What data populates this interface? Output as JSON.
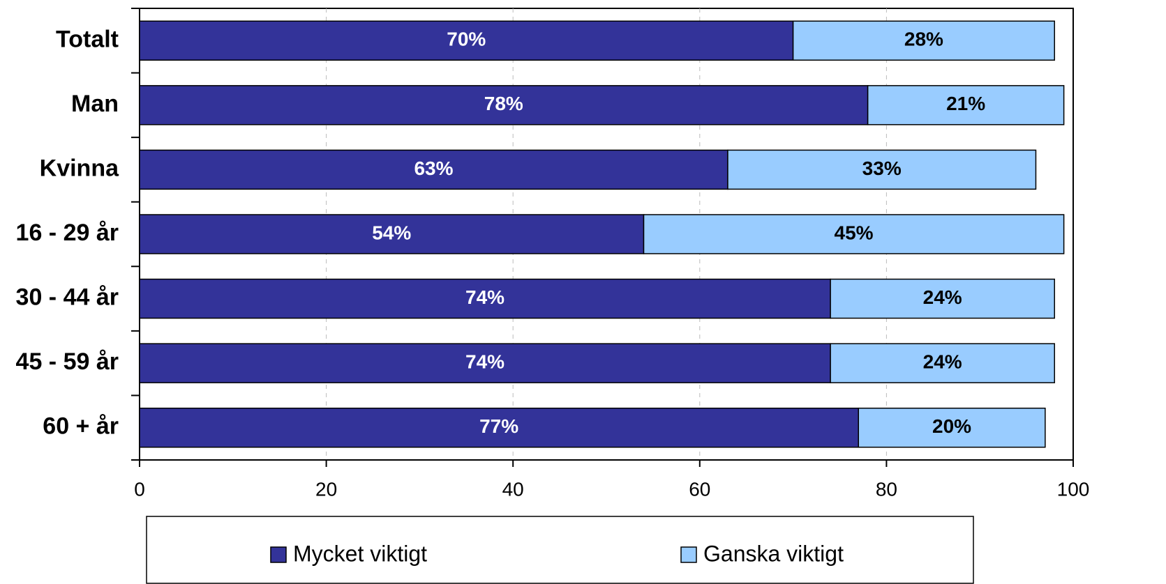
{
  "chart_data": {
    "type": "stacked_bar_horizontal",
    "categories": [
      "Totalt",
      "Man",
      "Kvinna",
      "16 - 29 år",
      "30 - 44 år",
      "45 - 59 år",
      "60 + år"
    ],
    "series": [
      {
        "name": "Mycket viktigt",
        "color": "#333399",
        "values": [
          70,
          78,
          63,
          54,
          74,
          74,
          77
        ],
        "value_labels": [
          "70%",
          "78%",
          "63%",
          "54%",
          "74%",
          "74%",
          "77%"
        ]
      },
      {
        "name": "Ganska viktigt",
        "color": "#99ccff",
        "values": [
          28,
          21,
          33,
          45,
          24,
          24,
          20
        ],
        "value_labels": [
          "28%",
          "21%",
          "33%",
          "45%",
          "24%",
          "24%",
          "20%"
        ]
      }
    ],
    "xlim": [
      0,
      100
    ],
    "xticks": [
      0,
      20,
      40,
      60,
      80,
      100
    ],
    "grid": true,
    "legend": "bottom"
  }
}
